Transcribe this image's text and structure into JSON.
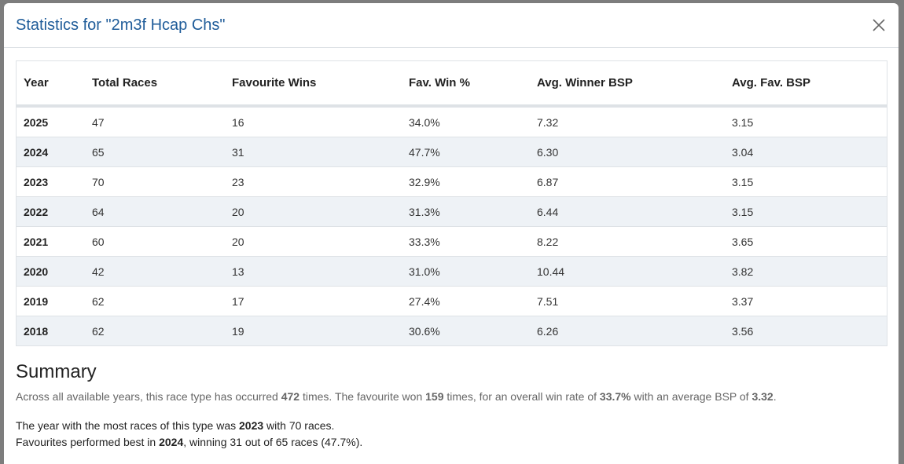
{
  "modal": {
    "title": "Statistics for \"2m3f Hcap Chs\"",
    "table": {
      "headers": [
        "Year",
        "Total Races",
        "Favourite Wins",
        "Fav. Win %",
        "Avg. Winner BSP",
        "Avg. Fav. BSP"
      ],
      "rows": [
        [
          "2025",
          "47",
          "16",
          "34.0%",
          "7.32",
          "3.15"
        ],
        [
          "2024",
          "65",
          "31",
          "47.7%",
          "6.30",
          "3.04"
        ],
        [
          "2023",
          "70",
          "23",
          "32.9%",
          "6.87",
          "3.15"
        ],
        [
          "2022",
          "64",
          "20",
          "31.3%",
          "6.44",
          "3.15"
        ],
        [
          "2021",
          "60",
          "20",
          "33.3%",
          "8.22",
          "3.65"
        ],
        [
          "2020",
          "42",
          "13",
          "31.0%",
          "10.44",
          "3.82"
        ],
        [
          "2019",
          "62",
          "17",
          "27.4%",
          "7.51",
          "3.37"
        ],
        [
          "2018",
          "62",
          "19",
          "30.6%",
          "6.26",
          "3.56"
        ]
      ]
    },
    "summary": {
      "heading": "Summary",
      "paragraphs": [
        [
          {
            "text": "Across all available years, this race type has occurred ",
            "bold": false
          },
          {
            "text": "472",
            "bold": true
          },
          {
            "text": " times. The favourite won ",
            "bold": false
          },
          {
            "text": "159",
            "bold": true
          },
          {
            "text": " times, for an overall win rate of ",
            "bold": false
          },
          {
            "text": "33.7%",
            "bold": true
          },
          {
            "text": " with an average BSP of ",
            "bold": false
          },
          {
            "text": "3.32",
            "bold": true
          },
          {
            "text": ".",
            "bold": false
          }
        ],
        [
          {
            "text": "The year with the most races of this type was ",
            "bold": false
          },
          {
            "text": "2023",
            "bold": true
          },
          {
            "text": " with 70 races.",
            "bold": false
          }
        ],
        [
          {
            "text": "Favourites performed best in ",
            "bold": false
          },
          {
            "text": "2024",
            "bold": true
          },
          {
            "text": ", winning 31 out of 65 races (47.7%).",
            "bold": false
          }
        ]
      ]
    }
  }
}
